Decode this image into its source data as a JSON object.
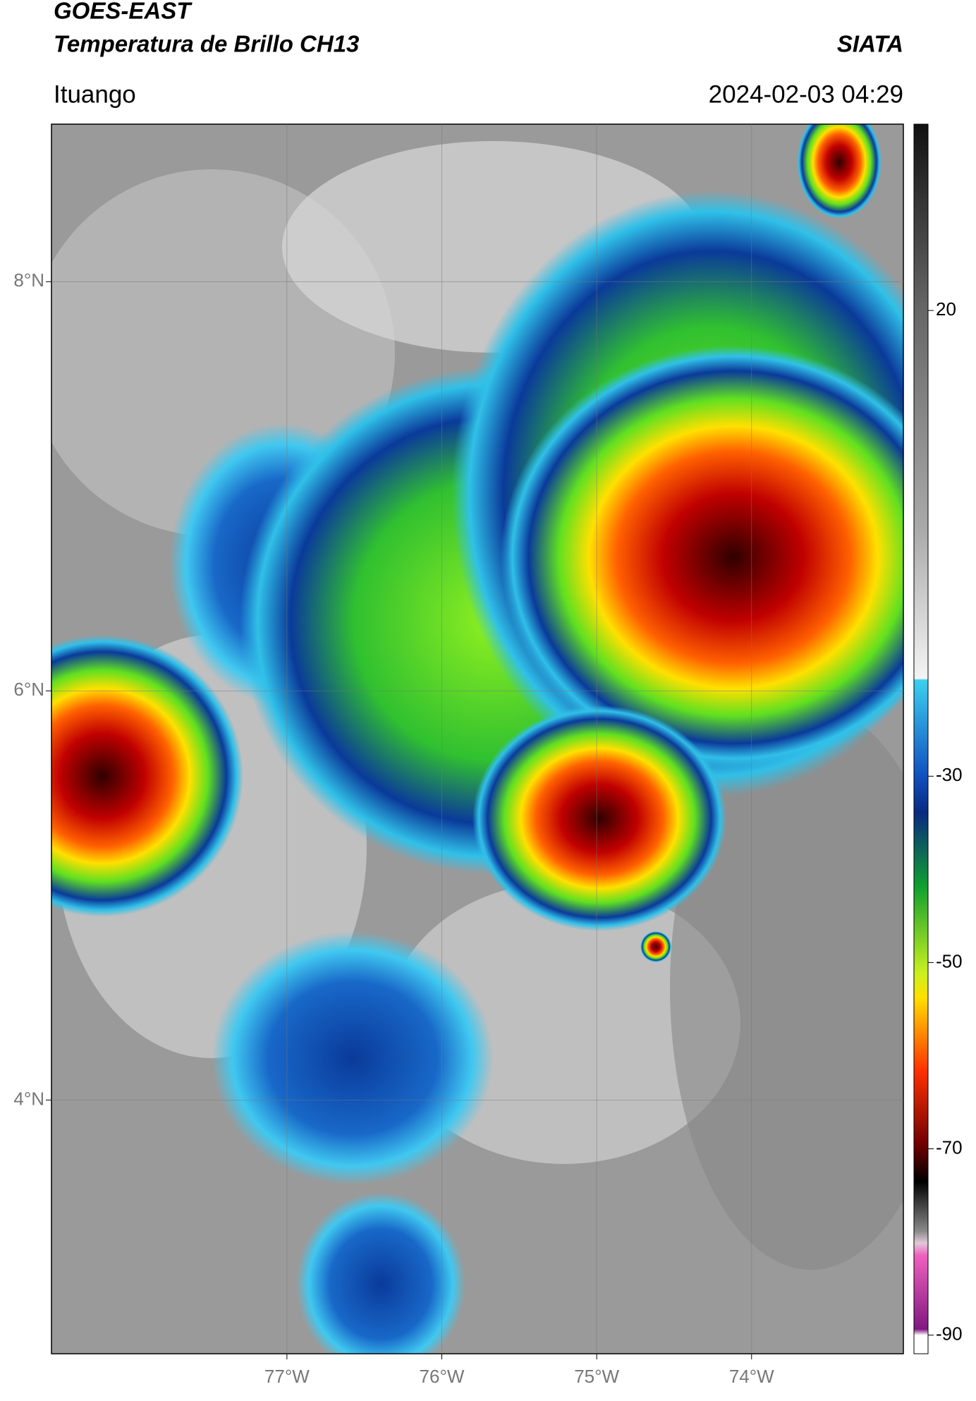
{
  "header": {
    "line1": "GOES-EAST",
    "title": "Temperatura de Brillo CH13",
    "org": "SIATA",
    "location": "Ituango",
    "datetime": "2024-02-03 04:29"
  },
  "map": {
    "lat_range": [
      2.76,
      8.77
    ],
    "lon_range": [
      -78.52,
      -73.02
    ],
    "lat_ticks": [
      {
        "value": 8,
        "label": "8°N"
      },
      {
        "value": 6,
        "label": "6°N"
      },
      {
        "value": 4,
        "label": "4°N"
      }
    ],
    "lon_ticks": [
      {
        "value": -77,
        "label": "77°W"
      },
      {
        "value": -76,
        "label": "76°W"
      },
      {
        "value": -75,
        "label": "75°W"
      },
      {
        "value": -74,
        "label": "74°W"
      }
    ],
    "grid": true
  },
  "colorbar": {
    "range": [
      -92,
      40
    ],
    "ticks": [
      20,
      -30,
      -50,
      -70,
      -90
    ]
  }
}
